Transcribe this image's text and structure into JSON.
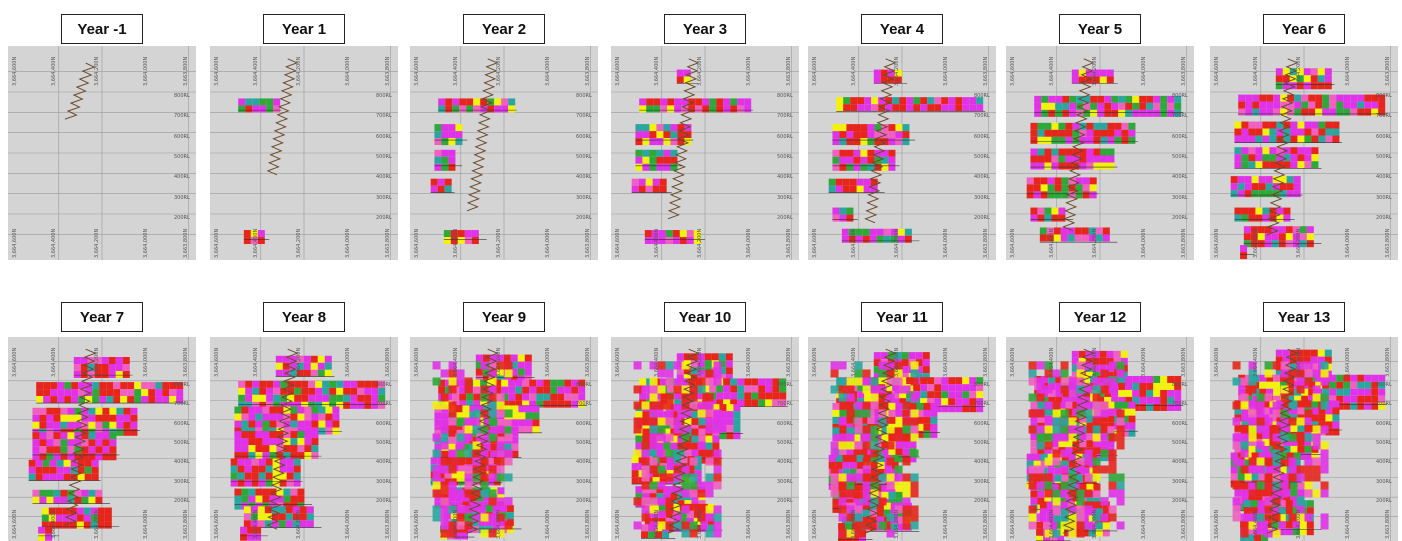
{
  "figure": {
    "panels": [
      {
        "title": "Year -1",
        "stage": 0
      },
      {
        "title": "Year 1",
        "stage": 1
      },
      {
        "title": "Year 2",
        "stage": 2
      },
      {
        "title": "Year 3",
        "stage": 3
      },
      {
        "title": "Year 4",
        "stage": 4
      },
      {
        "title": "Year 5",
        "stage": 5
      },
      {
        "title": "Year 6",
        "stage": 6
      },
      {
        "title": "Year 7",
        "stage": 7
      },
      {
        "title": "Year 8",
        "stage": 8
      },
      {
        "title": "Year 9",
        "stage": 9
      },
      {
        "title": "Year 10",
        "stage": 10
      },
      {
        "title": "Year 11",
        "stage": 11
      },
      {
        "title": "Year 12",
        "stage": 12
      },
      {
        "title": "Year 13",
        "stage": 13
      }
    ],
    "rl_labels": [
      "800RL",
      "700RL",
      "600RL",
      "500RL",
      "400RL",
      "300RL",
      "200RL"
    ],
    "northing_labels": [
      "3,664,600N",
      "3,664,400N",
      "3,664,200N",
      "3,664,000N",
      "3,663,800N"
    ],
    "colors": {
      "background": "#d4d4d4",
      "grid": "#9a9a9a",
      "magenta": "#e033e8",
      "red": "#e6261c",
      "pink": "#f060c0",
      "yellow": "#f2f20a",
      "green": "#2ea83a",
      "teal": "#2aa6a0",
      "white": "#f4f4f4",
      "decline": "#6a4a2a"
    }
  }
}
